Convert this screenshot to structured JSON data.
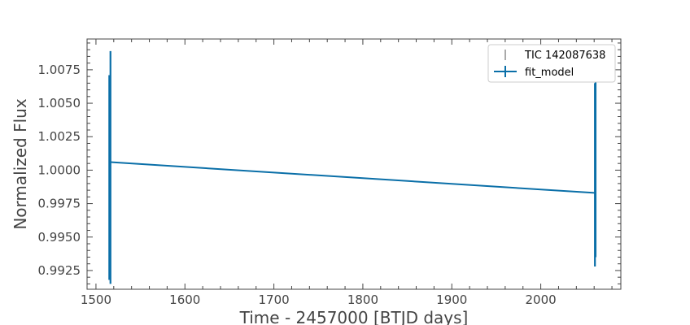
{
  "chart_data": {
    "type": "line",
    "title": "",
    "xlabel": "Time - 2457000 [BTJD days]",
    "ylabel": "Normalized Flux",
    "xlim": [
      1490,
      2090
    ],
    "ylim": [
      0.9911,
      1.0098
    ],
    "xticks": [
      "1500",
      "1600",
      "1700",
      "1800",
      "1900",
      "2000"
    ],
    "yticks": [
      "0.9925",
      "0.9950",
      "0.9975",
      "1.0000",
      "1.0025",
      "1.0050",
      "1.0075"
    ],
    "grid": false,
    "legend_position": "top-right",
    "colors": {
      "data": "#555555",
      "model": "#0a6fa8"
    },
    "series": [
      {
        "name": "TIC 142087638",
        "kind": "errorbar",
        "segments": [
          {
            "x": 1515.0,
            "ymin": 0.9918,
            "ymax": 1.0071
          },
          {
            "x": 1515.6,
            "ymin": 0.9925,
            "ymax": 1.006
          },
          {
            "x": 1516.3,
            "ymin": 0.9915,
            "ymax": 1.0089
          },
          {
            "x": 2060.9,
            "ymin": 0.9928,
            "ymax": 1.0065
          },
          {
            "x": 2061.6,
            "ymin": 0.9935,
            "ymax": 1.0068
          }
        ]
      },
      {
        "name": "fit_model",
        "kind": "line",
        "x": [
          1516.0,
          2060.5
        ],
        "y": [
          1.0006,
          0.9983
        ]
      }
    ]
  }
}
